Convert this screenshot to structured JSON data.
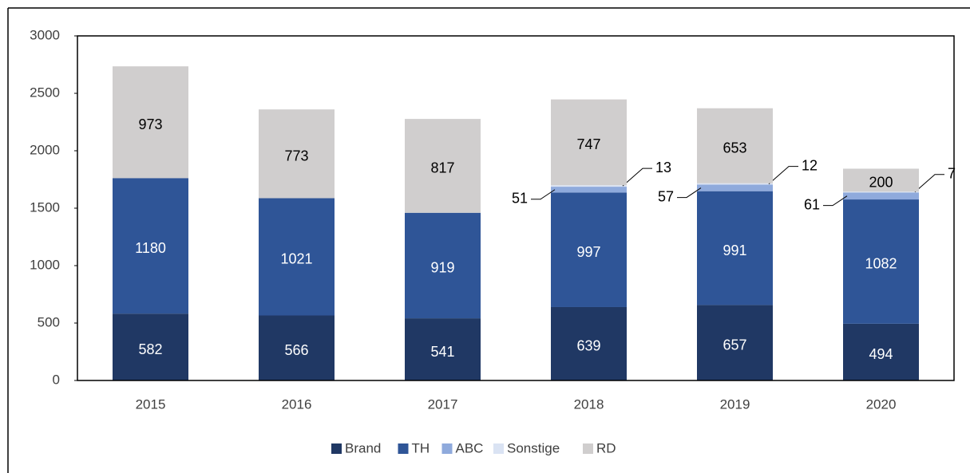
{
  "chart_data": {
    "type": "stacked_bar",
    "categories": [
      "2015",
      "2016",
      "2017",
      "2018",
      "2019",
      "2020"
    ],
    "series": [
      {
        "name": "Brand",
        "color": "#203864",
        "values": [
          582,
          566,
          541,
          639,
          657,
          494
        ]
      },
      {
        "name": "TH",
        "color": "#2f5597",
        "values": [
          1180,
          1021,
          919,
          997,
          991,
          1082
        ]
      },
      {
        "name": "ABC",
        "color": "#8faadc",
        "values": [
          null,
          null,
          null,
          51,
          57,
          61
        ]
      },
      {
        "name": "Sonstige",
        "color": "#dae3f3",
        "values": [
          null,
          null,
          null,
          13,
          12,
          7
        ]
      },
      {
        "name": "RD",
        "color": "#d0cece",
        "values": [
          973,
          773,
          817,
          747,
          653,
          200
        ]
      }
    ],
    "ylim": [
      0,
      3000
    ],
    "yticks": [
      0,
      500,
      1000,
      1500,
      2000,
      2500,
      3000
    ],
    "grid": false,
    "legend": "bottom"
  }
}
